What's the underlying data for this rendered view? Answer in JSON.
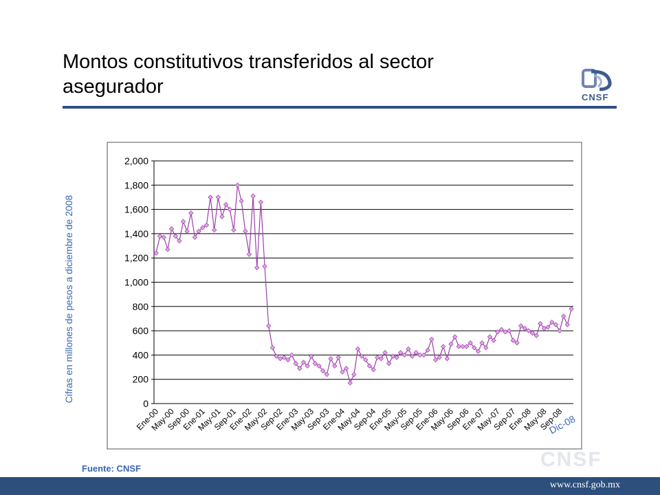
{
  "slide": {
    "title": "Montos constitutivos transferidos al sector asegurador",
    "source": "Fuente: CNSF",
    "logo_text": "CNSF",
    "watermark_text": "CNSF",
    "footer_url": "www.cnsf.gob.mx",
    "accent_color": "#2e4f85"
  },
  "chart_data": {
    "type": "line",
    "title": "",
    "xlabel": "",
    "ylabel": "Cifras en millones de pesos a diciembre de 2008",
    "ylim": [
      0,
      2000
    ],
    "yticks": [
      "0",
      "200",
      "400",
      "600",
      "800",
      "1,000",
      "1,200",
      "1,400",
      "1,600",
      "1,800",
      "2,000"
    ],
    "grid": true,
    "series_color": "#9b3fa8",
    "marker_color": "#e3a7ea",
    "x_tick_labels": [
      "Ene-00",
      "May-00",
      "Sep-00",
      "Ene-01",
      "May-01",
      "Sep-01",
      "Ene-02",
      "May-02",
      "Sep-02",
      "Ene-03",
      "May-03",
      "Sep-03",
      "Ene-04",
      "May-04",
      "Sep-04",
      "Ene-05",
      "May-05",
      "Sep-05",
      "Ene-06",
      "May-06",
      "Sep-06",
      "Ene-07",
      "May-07",
      "Sep-07",
      "Ene-08",
      "May-08",
      "Sep-08"
    ],
    "annotation": "Dic-08",
    "series": [
      {
        "values": [
          1240,
          1380,
          1370,
          1270,
          1440,
          1380,
          1340,
          1500,
          1420,
          1570,
          1370,
          1420,
          1450,
          1470,
          1700,
          1430,
          1700,
          1540,
          1640,
          1600,
          1430,
          1800,
          1670,
          1420,
          1230,
          1710,
          1120,
          1660,
          1130,
          640,
          460,
          390,
          370,
          380,
          360,
          400,
          330,
          290,
          340,
          310,
          390,
          330,
          310,
          270,
          240,
          370,
          310,
          380,
          260,
          290,
          170,
          240,
          450,
          390,
          360,
          310,
          280,
          380,
          370,
          420,
          330,
          390,
          380,
          420,
          400,
          450,
          390,
          420,
          400,
          400,
          440,
          530,
          360,
          380,
          470,
          370,
          490,
          550,
          470,
          470,
          470,
          500,
          460,
          430,
          500,
          460,
          550,
          520,
          590,
          610,
          590,
          600,
          520,
          500,
          640,
          620,
          600,
          580,
          560,
          660,
          620,
          630,
          670,
          650,
          600,
          720,
          650,
          780
        ]
      }
    ]
  }
}
